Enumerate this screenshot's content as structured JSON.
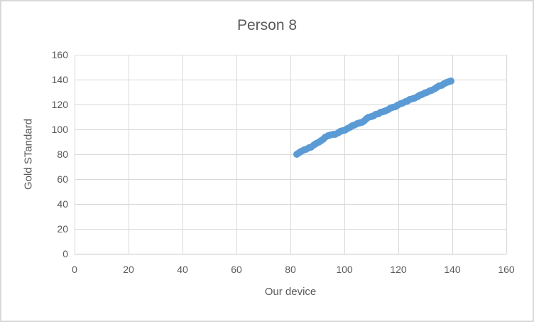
{
  "window": {
    "background": "#FFFFFF",
    "border_color": "#D9D9D9"
  },
  "chart_data": {
    "type": "scatter",
    "title": "Person 8",
    "xlabel": "Our device",
    "ylabel": "Gold STandard",
    "xlim": [
      0,
      160
    ],
    "ylim": [
      0,
      160
    ],
    "xticks": [
      0,
      20,
      40,
      60,
      80,
      100,
      120,
      140,
      160
    ],
    "yticks": [
      0,
      20,
      40,
      60,
      80,
      100,
      120,
      140,
      160
    ],
    "grid": true,
    "legend": false,
    "colors": {
      "marker": "#5B9BD5",
      "gridline": "#D9D9D9",
      "axis_line": "#C6C6C6",
      "text": "#595959"
    },
    "series": [
      {
        "marker": "circle",
        "color": "#5B9BD5",
        "points": [
          [
            82.4,
            80.2
          ],
          [
            83.2,
            81.0
          ],
          [
            84.0,
            82.3
          ],
          [
            84.9,
            83.2
          ],
          [
            85.8,
            84.2
          ],
          [
            86.8,
            85.2
          ],
          [
            87.7,
            86.0
          ],
          [
            88.6,
            87.3
          ],
          [
            89.5,
            88.7
          ],
          [
            90.4,
            89.9
          ],
          [
            91.2,
            90.8
          ],
          [
            92.1,
            92.2
          ],
          [
            93.0,
            93.6
          ],
          [
            93.9,
            94.8
          ],
          [
            94.8,
            95.6
          ],
          [
            95.7,
            95.9
          ],
          [
            96.6,
            96.1
          ],
          [
            97.5,
            97.3
          ],
          [
            98.4,
            98.3
          ],
          [
            99.3,
            98.9
          ],
          [
            100.2,
            99.4
          ],
          [
            101.1,
            100.6
          ],
          [
            102.0,
            101.9
          ],
          [
            102.9,
            102.8
          ],
          [
            103.8,
            103.7
          ],
          [
            104.7,
            104.5
          ],
          [
            105.6,
            105.0
          ],
          [
            106.5,
            105.8
          ],
          [
            107.4,
            106.9
          ],
          [
            108.2,
            108.3
          ],
          [
            109.0,
            109.5
          ],
          [
            109.9,
            110.1
          ],
          [
            110.8,
            110.7
          ],
          [
            111.7,
            111.8
          ],
          [
            112.6,
            112.8
          ],
          [
            113.5,
            113.5
          ],
          [
            114.4,
            114.1
          ],
          [
            115.3,
            115.1
          ],
          [
            116.2,
            116.2
          ],
          [
            117.1,
            116.9
          ],
          [
            118.0,
            117.5
          ],
          [
            118.9,
            118.5
          ],
          [
            119.8,
            119.6
          ],
          [
            120.7,
            120.5
          ],
          [
            121.6,
            121.4
          ],
          [
            122.5,
            122.3
          ],
          [
            123.4,
            123.1
          ],
          [
            124.3,
            123.8
          ],
          [
            125.2,
            124.4
          ],
          [
            126.1,
            125.4
          ],
          [
            127.0,
            126.5
          ],
          [
            127.9,
            127.4
          ],
          [
            128.8,
            128.2
          ],
          [
            129.7,
            129.0
          ],
          [
            130.6,
            129.8
          ],
          [
            131.5,
            130.7
          ],
          [
            132.4,
            131.6
          ],
          [
            133.3,
            132.7
          ],
          [
            134.2,
            133.8
          ],
          [
            135.1,
            134.7
          ],
          [
            136.0,
            135.6
          ],
          [
            136.9,
            136.7
          ],
          [
            137.8,
            137.8
          ],
          [
            138.7,
            138.3
          ],
          [
            139.5,
            138.9
          ]
        ]
      }
    ]
  }
}
